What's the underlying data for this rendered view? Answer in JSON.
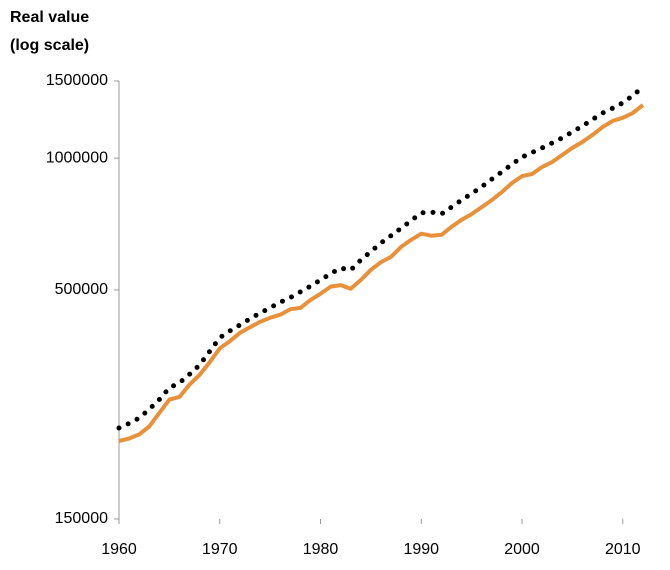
{
  "chart_data": {
    "type": "line",
    "ylabel": [
      "Real value",
      "(log scale)"
    ],
    "x": [
      1960,
      1961,
      1962,
      1963,
      1964,
      1965,
      1966,
      1967,
      1968,
      1969,
      1970,
      1971,
      1972,
      1973,
      1974,
      1975,
      1976,
      1977,
      1978,
      1979,
      1980,
      1981,
      1982,
      1983,
      1984,
      1985,
      1986,
      1987,
      1988,
      1989,
      1990,
      1991,
      1992,
      1993,
      1994,
      1995,
      1996,
      1997,
      1998,
      1999,
      2000,
      2001,
      2002,
      2003,
      2004,
      2005,
      2006,
      2007,
      2008,
      2009,
      2010,
      2011,
      2012
    ],
    "series": [
      {
        "color": "#000000",
        "style": "dotted",
        "values": [
          242000,
          248000,
          255000,
          267000,
          281000,
          299000,
          307000,
          321000,
          337000,
          362000,
          389000,
          403000,
          416000,
          430000,
          443000,
          455000,
          469000,
          480000,
          495000,
          510000,
          527000,
          545000,
          561000,
          555000,
          585000,
          612000,
          640000,
          665000,
          692000,
          720000,
          750000,
          753000,
          745000,
          773000,
          802000,
          830000,
          860000,
          895000,
          930000,
          968000,
          1005000,
          1030000,
          1055000,
          1083000,
          1112000,
          1148000,
          1184000,
          1225000,
          1268000,
          1300000,
          1337000,
          1390000,
          1452000
        ]
      },
      {
        "color": "#e8913a",
        "style": "solid",
        "values": [
          226000,
          229000,
          234000,
          244000,
          262000,
          281000,
          285000,
          304000,
          320000,
          342000,
          368000,
          382000,
          399000,
          411000,
          423000,
          432000,
          439000,
          452000,
          455000,
          474000,
          490000,
          509000,
          513000,
          503000,
          527000,
          556000,
          579000,
          595000,
          627000,
          651000,
          672000,
          665000,
          668000,
          697000,
          723000,
          745000,
          773000,
          802000,
          837000,
          877000,
          910000,
          920000,
          955000,
          980000,
          1017000,
          1055000,
          1089000,
          1130000,
          1178000,
          1216000,
          1236000,
          1268000,
          1322000
        ]
      }
    ],
    "xlim": [
      1960,
      2013
    ],
    "xticks": [
      1960,
      1970,
      1980,
      1990,
      2000,
      2010
    ],
    "ylim": [
      150000,
      1500000
    ],
    "yticks": [
      150000,
      500000,
      1000000,
      1500000
    ],
    "log_y": true,
    "grid": false
  }
}
